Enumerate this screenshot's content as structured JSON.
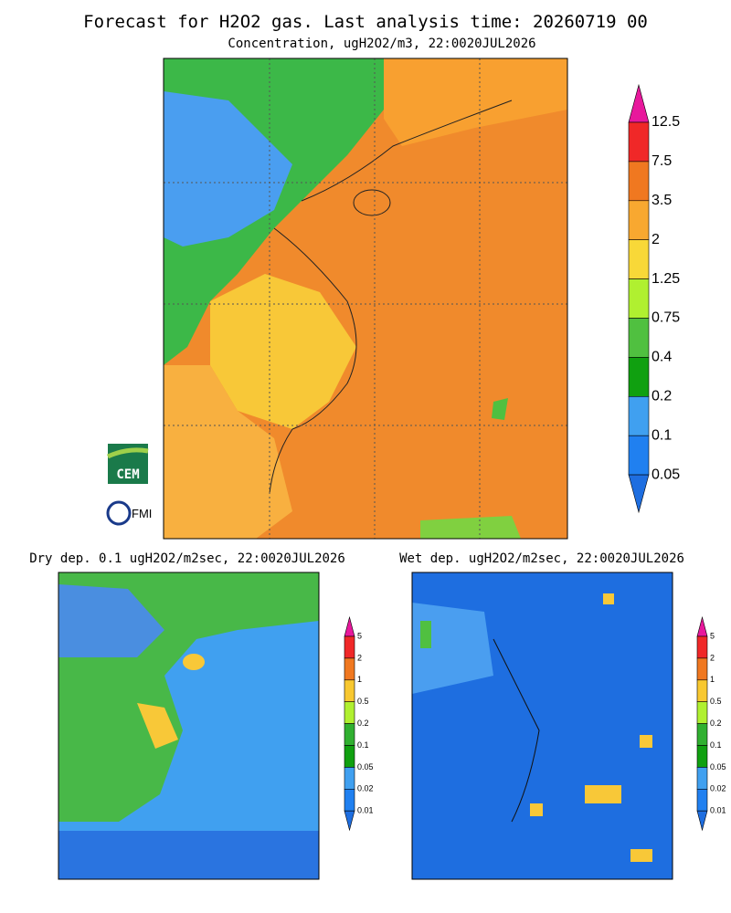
{
  "header": {
    "title": "Forecast for H2O2 gas. Last analysis time: 20260719 00",
    "subtitle": "Concentration, ugH2O2/m3, 22:0020JUL2026"
  },
  "main_colorbar": {
    "labels": [
      "12.5",
      "7.5",
      "3.5",
      "2",
      "1.25",
      "0.75",
      "0.4",
      "0.2",
      "0.1",
      "0.05"
    ],
    "colors": [
      "#e8189c",
      "#f02828",
      "#f07820",
      "#f8a830",
      "#f8d838",
      "#b0f030",
      "#50c040",
      "#10a010",
      "#40a0f0",
      "#2080f0",
      "#1e6ee0"
    ]
  },
  "panels": [
    {
      "title": "Dry dep. 0.1 ugH2O2/m2sec, 22:0020JUL2026",
      "colorbar": {
        "labels": [
          "5",
          "2",
          "1",
          "0.5",
          "0.2",
          "0.1",
          "0.05",
          "0.02",
          "0.01"
        ],
        "colors": [
          "#e8189c",
          "#f02828",
          "#f07820",
          "#f8c830",
          "#b0f030",
          "#30b030",
          "#10a010",
          "#40a0f0",
          "#2080f0",
          "#1e6ee0"
        ]
      }
    },
    {
      "title": "Wet dep. ugH2O2/m2sec, 22:0020JUL2026",
      "colorbar": {
        "labels": [
          "5",
          "2",
          "1",
          "0.5",
          "0.2",
          "0.1",
          "0.05",
          "0.02",
          "0.01"
        ],
        "colors": [
          "#e8189c",
          "#f02828",
          "#f07820",
          "#f8c830",
          "#b0f030",
          "#30b030",
          "#10a010",
          "#40a0f0",
          "#2080f0",
          "#1e6ee0"
        ]
      }
    }
  ],
  "logos": [
    "CEM",
    "FMI"
  ]
}
